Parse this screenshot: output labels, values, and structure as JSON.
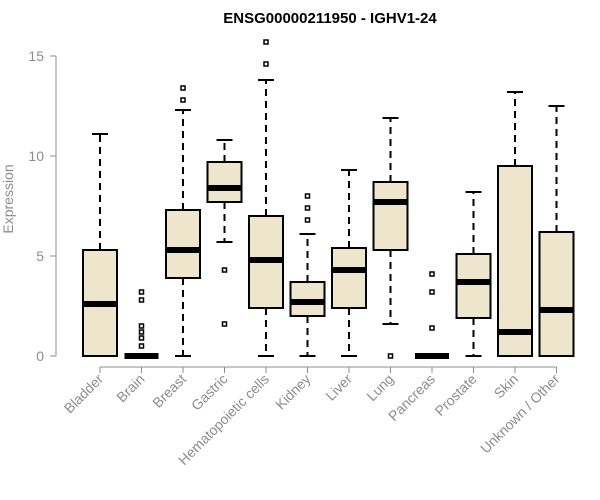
{
  "chart_data": {
    "type": "boxplot",
    "title": "ENSG00000211950 - IGHV1-24",
    "xlabel": "",
    "ylabel": "Expression",
    "ylim": [
      0,
      15.7
    ],
    "yticks": [
      0,
      5,
      10,
      15
    ],
    "grid": false,
    "categories": [
      "Bladder",
      "Brain",
      "Breast",
      "Gastric",
      "Hematopoietic cells",
      "Kidney",
      "Liver",
      "Lung",
      "Pancreas",
      "Prostate",
      "Skin",
      "Unknown / Other"
    ],
    "boxes": [
      {
        "name": "Bladder",
        "whisker_low": 0,
        "q1": 0,
        "median": 2.6,
        "q3": 5.3,
        "whisker_high": 11.1,
        "outliers": []
      },
      {
        "name": "Brain",
        "whisker_low": 0,
        "q1": 0,
        "median": 0,
        "q3": 0,
        "whisker_high": 0,
        "outliers": [
          0.5,
          0.9,
          1.2,
          1.5,
          2.8,
          3.2
        ]
      },
      {
        "name": "Breast",
        "whisker_low": 0,
        "q1": 3.9,
        "median": 5.3,
        "q3": 7.3,
        "whisker_high": 12.3,
        "outliers": [
          12.8,
          13.4
        ]
      },
      {
        "name": "Gastric",
        "whisker_low": 5.7,
        "q1": 7.7,
        "median": 8.4,
        "q3": 9.7,
        "whisker_high": 10.8,
        "outliers": [
          1.6,
          4.3
        ]
      },
      {
        "name": "Hematopoietic cells",
        "whisker_low": 0,
        "q1": 2.4,
        "median": 4.8,
        "q3": 7.0,
        "whisker_high": 13.8,
        "outliers": [
          14.6,
          15.7
        ]
      },
      {
        "name": "Kidney",
        "whisker_low": 0,
        "q1": 2.0,
        "median": 2.7,
        "q3": 3.7,
        "whisker_high": 6.1,
        "outliers": [
          6.8,
          7.4,
          8.0
        ]
      },
      {
        "name": "Liver",
        "whisker_low": 0,
        "q1": 2.4,
        "median": 4.3,
        "q3": 5.4,
        "whisker_high": 9.3,
        "outliers": []
      },
      {
        "name": "Lung",
        "whisker_low": 1.6,
        "q1": 5.3,
        "median": 7.7,
        "q3": 8.7,
        "whisker_high": 11.9,
        "outliers": [
          0
        ]
      },
      {
        "name": "Pancreas",
        "whisker_low": 0,
        "q1": 0,
        "median": 0,
        "q3": 0,
        "whisker_high": 0,
        "outliers": [
          1.4,
          3.2,
          4.1
        ]
      },
      {
        "name": "Prostate",
        "whisker_low": 0,
        "q1": 1.9,
        "median": 3.7,
        "q3": 5.1,
        "whisker_high": 8.2,
        "outliers": []
      },
      {
        "name": "Skin",
        "whisker_low": 0,
        "q1": 0,
        "median": 1.2,
        "q3": 9.5,
        "whisker_high": 13.2,
        "outliers": []
      },
      {
        "name": "Unknown / Other",
        "whisker_low": 0,
        "q1": 0,
        "median": 2.3,
        "q3": 6.2,
        "whisker_high": 12.5,
        "outliers": []
      }
    ],
    "colors": {
      "box_fill": "#ede6cc",
      "stroke": "#000000",
      "axis": "#8c8c8c"
    }
  }
}
